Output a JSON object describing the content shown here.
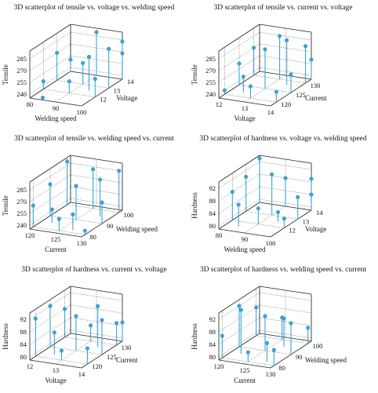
{
  "chart_data": [
    {
      "type": "scatter3d",
      "title": "3D scatterplot of tensile vs. voltage vs. welding speed",
      "xlabel": "Welding speed",
      "ylabel": "Voltage",
      "zlabel": "Tensile",
      "xlim": [
        80,
        100
      ],
      "ylim": [
        11,
        14
      ],
      "zlim": [
        235,
        295
      ],
      "xticks": [
        80,
        90,
        100
      ],
      "yticks": [
        12,
        13,
        14
      ],
      "zticks": [
        240,
        255,
        270,
        285
      ],
      "points": [
        {
          "x": 80,
          "y": 12,
          "z": 245
        },
        {
          "x": 80,
          "y": 13,
          "z": 270
        },
        {
          "x": 80,
          "y": 14,
          "z": 250
        },
        {
          "x": 90,
          "y": 12,
          "z": 250
        },
        {
          "x": 90,
          "y": 13,
          "z": 262
        },
        {
          "x": 90,
          "y": 14,
          "z": 290
        },
        {
          "x": 100,
          "y": 12,
          "z": 258
        },
        {
          "x": 100,
          "y": 13,
          "z": 285
        },
        {
          "x": 100,
          "y": 14,
          "z": 283
        },
        {
          "x": 85,
          "y": 11,
          "z": 238
        },
        {
          "x": 95,
          "y": 12.5,
          "z": 278
        },
        {
          "x": 100,
          "y": 14,
          "z": 268
        }
      ]
    },
    {
      "type": "scatter3d",
      "title": "3D scatterplot of tensile vs. current vs. voltage",
      "xlabel": "Voltage",
      "ylabel": "Current",
      "zlabel": "Tensile",
      "xlim": [
        12,
        14
      ],
      "ylim": [
        118,
        132
      ],
      "zlim": [
        235,
        295
      ],
      "xticks": [
        12,
        13,
        14
      ],
      "yticks": [
        120,
        125,
        130
      ],
      "zticks": [
        240,
        255,
        270,
        285
      ],
      "points": [
        {
          "x": 12,
          "y": 120,
          "z": 240
        },
        {
          "x": 12,
          "y": 125,
          "z": 262
        },
        {
          "x": 12,
          "y": 130,
          "z": 270
        },
        {
          "x": 13,
          "y": 120,
          "z": 250
        },
        {
          "x": 13,
          "y": 125,
          "z": 285
        },
        {
          "x": 13,
          "y": 130,
          "z": 290
        },
        {
          "x": 14,
          "y": 120,
          "z": 248
        },
        {
          "x": 14,
          "y": 125,
          "z": 258
        },
        {
          "x": 14,
          "y": 130,
          "z": 282
        },
        {
          "x": 12.5,
          "y": 122,
          "z": 255
        },
        {
          "x": 13.5,
          "y": 128,
          "z": 292
        },
        {
          "x": 14,
          "y": 132,
          "z": 260
        }
      ]
    },
    {
      "type": "scatter3d",
      "title": "3D scatterplot of tensile vs. welding speed vs. current",
      "xlabel": "Current",
      "ylabel": "Welding speed",
      "zlabel": "Tensile",
      "xlim": [
        120,
        130
      ],
      "ylim": [
        78,
        102
      ],
      "zlim": [
        235,
        295
      ],
      "xticks": [
        120,
        125,
        130
      ],
      "yticks": [
        80,
        90,
        100
      ],
      "zticks": [
        240,
        255,
        270,
        285
      ],
      "points": [
        {
          "x": 120,
          "y": 80,
          "z": 262
        },
        {
          "x": 120,
          "y": 90,
          "z": 275
        },
        {
          "x": 120,
          "y": 100,
          "z": 290
        },
        {
          "x": 125,
          "y": 80,
          "z": 250
        },
        {
          "x": 125,
          "y": 90,
          "z": 278
        },
        {
          "x": 125,
          "y": 100,
          "z": 285
        },
        {
          "x": 130,
          "y": 80,
          "z": 240
        },
        {
          "x": 130,
          "y": 90,
          "z": 262
        },
        {
          "x": 130,
          "y": 100,
          "z": 288
        },
        {
          "x": 122,
          "y": 85,
          "z": 252
        },
        {
          "x": 128,
          "y": 95,
          "z": 282
        },
        {
          "x": 127,
          "y": 82,
          "z": 255
        }
      ]
    },
    {
      "type": "scatter3d",
      "title": "3D scatterplot of hardness vs. voltage vs. welding speed",
      "xlabel": "Welding speed",
      "ylabel": "Voltage",
      "zlabel": "Hardness",
      "xlim": [
        80,
        100
      ],
      "ylim": [
        11,
        14
      ],
      "zlim": [
        79,
        94
      ],
      "xticks": [
        80,
        90,
        100
      ],
      "yticks": [
        12,
        13,
        14
      ],
      "zticks": [
        80,
        84,
        88,
        92
      ],
      "points": [
        {
          "x": 80,
          "y": 12,
          "z": 88
        },
        {
          "x": 80,
          "y": 13,
          "z": 90
        },
        {
          "x": 80,
          "y": 14,
          "z": 93
        },
        {
          "x": 90,
          "y": 12,
          "z": 84
        },
        {
          "x": 90,
          "y": 13,
          "z": 92
        },
        {
          "x": 90,
          "y": 14,
          "z": 88
        },
        {
          "x": 100,
          "y": 12,
          "z": 82
        },
        {
          "x": 100,
          "y": 13,
          "z": 86
        },
        {
          "x": 100,
          "y": 14,
          "z": 89
        },
        {
          "x": 85,
          "y": 11.5,
          "z": 86
        },
        {
          "x": 95,
          "y": 12.5,
          "z": 82
        },
        {
          "x": 100,
          "y": 14,
          "z": 84
        }
      ]
    },
    {
      "type": "scatter3d",
      "title": "3D scatterplot of hardness vs. current vs. voltage",
      "xlabel": "Voltage",
      "ylabel": "Current",
      "zlabel": "Hardness",
      "xlim": [
        12,
        14
      ],
      "ylim": [
        118,
        132
      ],
      "zlim": [
        79,
        94
      ],
      "xticks": [
        12,
        13,
        14
      ],
      "yticks": [
        120,
        125,
        130
      ],
      "zticks": [
        80,
        84,
        88,
        92
      ],
      "points": [
        {
          "x": 12,
          "y": 120,
          "z": 91
        },
        {
          "x": 12,
          "y": 125,
          "z": 92
        },
        {
          "x": 12,
          "y": 130,
          "z": 88
        },
        {
          "x": 13,
          "y": 120,
          "z": 82
        },
        {
          "x": 13,
          "y": 125,
          "z": 90
        },
        {
          "x": 13,
          "y": 130,
          "z": 84
        },
        {
          "x": 14,
          "y": 120,
          "z": 84
        },
        {
          "x": 14,
          "y": 125,
          "z": 90
        },
        {
          "x": 14,
          "y": 130,
          "z": 86
        },
        {
          "x": 12.5,
          "y": 122,
          "z": 86
        },
        {
          "x": 13.5,
          "y": 128,
          "z": 92
        },
        {
          "x": 14,
          "y": 132,
          "z": 85
        }
      ]
    },
    {
      "type": "scatter3d",
      "title": "3D scatterplot of hardness vs. welding speed vs. current",
      "xlabel": "Current",
      "ylabel": "Welding speed",
      "zlabel": "Hardness",
      "xlim": [
        120,
        130
      ],
      "ylim": [
        78,
        102
      ],
      "zlim": [
        79,
        94
      ],
      "xticks": [
        120,
        125,
        130
      ],
      "yticks": [
        80,
        90,
        100
      ],
      "zticks": [
        80,
        84,
        88,
        92
      ],
      "points": [
        {
          "x": 120,
          "y": 80,
          "z": 86
        },
        {
          "x": 120,
          "y": 90,
          "z": 92
        },
        {
          "x": 120,
          "y": 100,
          "z": 88
        },
        {
          "x": 125,
          "y": 80,
          "z": 82
        },
        {
          "x": 125,
          "y": 90,
          "z": 90
        },
        {
          "x": 125,
          "y": 100,
          "z": 86
        },
        {
          "x": 130,
          "y": 80,
          "z": 84
        },
        {
          "x": 130,
          "y": 90,
          "z": 89
        },
        {
          "x": 130,
          "y": 100,
          "z": 84
        },
        {
          "x": 122,
          "y": 85,
          "z": 93
        },
        {
          "x": 127,
          "y": 95,
          "z": 88
        },
        {
          "x": 128,
          "y": 82,
          "z": 85
        }
      ]
    }
  ]
}
